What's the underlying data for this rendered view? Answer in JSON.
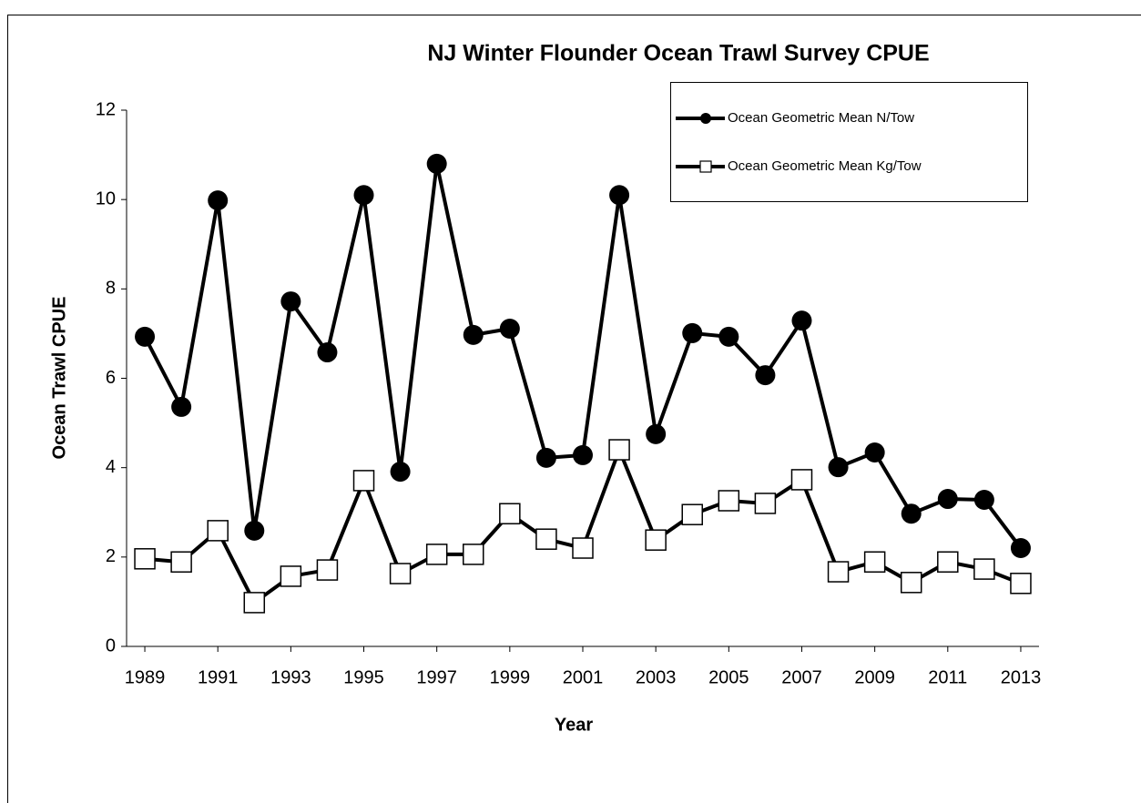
{
  "chart_data": {
    "type": "line",
    "title": "NJ Winter Flounder Ocean Trawl Survey CPUE",
    "x_label": "Year",
    "y_label": "Ocean Trawl CPUE",
    "x": [
      1989,
      1990,
      1991,
      1992,
      1993,
      1994,
      1995,
      1996,
      1997,
      1998,
      1999,
      2000,
      2001,
      2002,
      2003,
      2004,
      2005,
      2006,
      2007,
      2008,
      2009,
      2010,
      2011,
      2012,
      2013
    ],
    "xlim": [
      1988.5,
      2013.5
    ],
    "xticks": [
      1989,
      1991,
      1993,
      1995,
      1997,
      1999,
      2001,
      2003,
      2005,
      2007,
      2009,
      2011,
      2013
    ],
    "ylim": [
      0,
      12
    ],
    "yticks": [
      0,
      2,
      4,
      6,
      8,
      10,
      12
    ],
    "grid": false,
    "legend": "top-right",
    "series": [
      {
        "name": "Ocean Geometric Mean N/Tow",
        "color": "#000000",
        "marker": "circle",
        "values": [
          6.93,
          5.36,
          9.98,
          2.59,
          7.72,
          6.58,
          10.1,
          3.91,
          10.8,
          6.97,
          7.11,
          4.22,
          4.28,
          10.1,
          4.75,
          7.01,
          6.93,
          6.07,
          7.29,
          4.01,
          4.34,
          2.97,
          3.3,
          3.28,
          2.2
        ]
      },
      {
        "name": "Ocean Geometric Mean Kg/Tow",
        "color": "#000000",
        "marker": "square",
        "values": [
          1.96,
          1.89,
          2.59,
          0.98,
          1.57,
          1.71,
          3.71,
          1.63,
          2.06,
          2.06,
          2.97,
          2.4,
          2.2,
          4.4,
          2.38,
          2.95,
          3.26,
          3.2,
          3.73,
          1.67,
          1.89,
          1.43,
          1.89,
          1.73,
          1.41
        ]
      }
    ]
  }
}
